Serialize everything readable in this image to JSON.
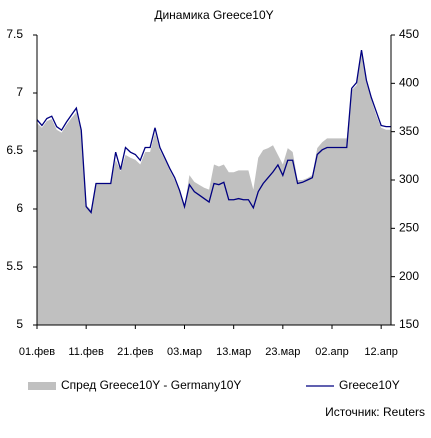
{
  "chart_data": {
    "type": "line",
    "title": "Динамика Greece10Y",
    "categories": [
      "01.фев",
      null,
      null,
      null,
      null,
      null,
      null,
      null,
      null,
      null,
      "11.фев",
      null,
      null,
      null,
      null,
      null,
      null,
      null,
      null,
      null,
      "21.фев",
      null,
      null,
      null,
      null,
      null,
      null,
      null,
      null,
      null,
      "03.мар",
      null,
      null,
      null,
      null,
      null,
      null,
      null,
      null,
      null,
      "13.мар",
      null,
      null,
      null,
      null,
      null,
      null,
      null,
      null,
      null,
      "23.мар",
      null,
      null,
      null,
      null,
      null,
      null,
      null,
      null,
      null,
      "02.апр",
      null,
      null,
      null,
      null,
      null,
      null,
      null,
      null,
      null,
      "12.апр",
      null,
      null
    ],
    "series": [
      {
        "name": "Спред Greece10Y - Germany10Y",
        "type": "area",
        "axis": "y2",
        "color": "#c0c0c0",
        "values": [
          359,
          354,
          361,
          363,
          352,
          349,
          357,
          364,
          370,
          349,
          274,
          269,
          297,
          297,
          297,
          297,
          321,
          309,
          326,
          323,
          321,
          316,
          329,
          329,
          349,
          331,
          321,
          310,
          300,
          288,
          272,
          305,
          298,
          295,
          292,
          290,
          316,
          314,
          316,
          308,
          308,
          310,
          310,
          310,
          290,
          323,
          331,
          333,
          336,
          326,
          316,
          333,
          329,
          300,
          300,
          302,
          305,
          333,
          339,
          343,
          343,
          343,
          343,
          343,
          393,
          398,
          432,
          401,
          383,
          367,
          354,
          352,
          352
        ]
      },
      {
        "name": "Greece10Y",
        "type": "line",
        "axis": "y",
        "color": "#000080",
        "values": [
          6.77,
          6.72,
          6.78,
          6.8,
          6.71,
          6.68,
          6.75,
          6.81,
          6.87,
          6.68,
          6.02,
          5.97,
          6.22,
          6.22,
          6.22,
          6.22,
          6.49,
          6.34,
          6.53,
          6.49,
          6.47,
          6.42,
          6.53,
          6.53,
          6.7,
          6.53,
          6.44,
          6.35,
          6.27,
          6.16,
          6.02,
          6.21,
          6.15,
          6.12,
          6.09,
          6.06,
          6.22,
          6.21,
          6.23,
          6.08,
          6.08,
          6.09,
          6.08,
          6.08,
          6.01,
          6.15,
          6.22,
          6.27,
          6.32,
          6.38,
          6.29,
          6.42,
          6.42,
          6.22,
          6.23,
          6.25,
          6.27,
          6.47,
          6.51,
          6.53,
          6.53,
          6.53,
          6.53,
          6.53,
          7.04,
          7.09,
          7.37,
          7.11,
          6.96,
          6.84,
          6.72,
          6.71,
          6.71
        ]
      }
    ],
    "ylim": [
      5,
      7.5
    ],
    "yticks": [
      5,
      5.5,
      6,
      6.5,
      7,
      7.5
    ],
    "y2lim": [
      150,
      450
    ],
    "y2ticks": [
      150,
      200,
      250,
      300,
      350,
      400,
      450
    ],
    "source": "Источник: Reuters"
  }
}
